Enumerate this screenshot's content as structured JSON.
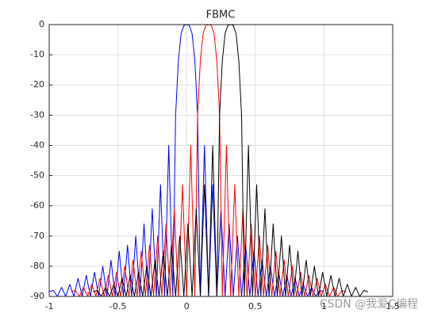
{
  "chart_data": {
    "type": "line",
    "title": "FBMC",
    "grid": true,
    "xlim": [
      -1,
      1.5
    ],
    "xticks": [
      -1,
      -0.5,
      0,
      0.5,
      1,
      1.5
    ],
    "ylim": [
      -90,
      0
    ],
    "yticks": [
      0,
      -10,
      -20,
      -30,
      -40,
      -50,
      -60,
      -70,
      -80,
      -90
    ],
    "series": [
      {
        "color": "#0000ff",
        "x": [
          -1.0,
          -0.97,
          -0.94,
          -0.91,
          -0.88,
          -0.85,
          -0.82,
          -0.79,
          -0.76,
          -0.73,
          -0.7,
          -0.67,
          -0.64,
          -0.61,
          -0.58,
          -0.55,
          -0.52,
          -0.49,
          -0.46,
          -0.43,
          -0.4,
          -0.37,
          -0.34,
          -0.31,
          -0.28,
          -0.25,
          -0.22,
          -0.19,
          -0.16,
          -0.13,
          -0.1,
          -0.08,
          -0.06,
          -0.04,
          -0.02,
          0,
          0.02,
          0.04,
          0.06,
          0.08,
          0.1,
          0.13,
          0.16,
          0.19,
          0.22,
          0.25,
          0.28,
          0.31,
          0.34,
          0.37,
          0.4,
          0.43,
          0.46,
          0.49,
          0.52,
          0.55,
          0.58,
          0.61,
          0.64,
          0.67,
          0.7,
          0.73,
          0.76,
          0.79,
          0.82,
          0.85,
          0.88,
          0.91,
          0.94,
          0.97,
          1.0
        ],
        "values": [
          -88.5,
          -88,
          -90,
          -87,
          -90,
          -86,
          -90,
          -84,
          -90,
          -83,
          -90,
          -82,
          -90,
          -80,
          -90,
          -78,
          -90,
          -75,
          -90,
          -73,
          -90,
          -70,
          -90,
          -66,
          -90,
          -61,
          -90,
          -53,
          -90,
          -40,
          -90,
          -30,
          -12,
          -3,
          -0.3,
          0,
          -0.3,
          -3,
          -12,
          -30,
          -90,
          -40,
          -90,
          -53,
          -90,
          -61,
          -90,
          -66,
          -90,
          -70,
          -90,
          -73,
          -90,
          -75,
          -90,
          -78,
          -90,
          -80,
          -90,
          -82,
          -90,
          -83,
          -90,
          -84,
          -90,
          -86,
          -90,
          -87,
          -90,
          -88,
          -88.5
        ]
      },
      {
        "color": "#ff0000",
        "x": [
          -0.84,
          -0.81,
          -0.78,
          -0.75,
          -0.72,
          -0.69,
          -0.66,
          -0.63,
          -0.6,
          -0.57,
          -0.54,
          -0.51,
          -0.48,
          -0.45,
          -0.42,
          -0.39,
          -0.36,
          -0.33,
          -0.3,
          -0.27,
          -0.24,
          -0.21,
          -0.18,
          -0.15,
          -0.12,
          -0.09,
          -0.06,
          -0.03,
          0,
          0.03,
          0.06,
          0.08,
          0.1,
          0.12,
          0.14,
          0.16,
          0.18,
          0.2,
          0.22,
          0.24,
          0.26,
          0.29,
          0.32,
          0.35,
          0.38,
          0.41,
          0.44,
          0.47,
          0.5,
          0.53,
          0.56,
          0.59,
          0.62,
          0.65,
          0.68,
          0.71,
          0.74,
          0.77,
          0.8,
          0.83,
          0.86,
          0.89,
          0.92,
          0.95,
          0.98,
          1.01,
          1.04,
          1.07,
          1.1,
          1.13,
          1.16
        ],
        "values": [
          -88.5,
          -88,
          -90,
          -87,
          -90,
          -86,
          -90,
          -84,
          -90,
          -83,
          -90,
          -82,
          -90,
          -80,
          -90,
          -78,
          -90,
          -75,
          -90,
          -73,
          -90,
          -70,
          -90,
          -66,
          -90,
          -61,
          -90,
          -53,
          -90,
          -40,
          -90,
          -30,
          -12,
          -3,
          -0.3,
          0,
          -0.3,
          -3,
          -12,
          -30,
          -90,
          -40,
          -90,
          -53,
          -90,
          -61,
          -90,
          -66,
          -90,
          -70,
          -90,
          -73,
          -90,
          -75,
          -90,
          -78,
          -90,
          -80,
          -90,
          -82,
          -90,
          -83,
          -90,
          -84,
          -90,
          -86,
          -90,
          -87,
          -90,
          -88,
          -88.5
        ]
      },
      {
        "color": "#000000",
        "x": [
          -0.68,
          -0.65,
          -0.62,
          -0.59,
          -0.56,
          -0.53,
          -0.5,
          -0.47,
          -0.44,
          -0.41,
          -0.38,
          -0.35,
          -0.32,
          -0.29,
          -0.26,
          -0.23,
          -0.2,
          -0.17,
          -0.14,
          -0.11,
          -0.08,
          -0.05,
          -0.02,
          0.01,
          0.04,
          0.07,
          0.1,
          0.13,
          0.16,
          0.19,
          0.22,
          0.24,
          0.26,
          0.28,
          0.3,
          0.32,
          0.34,
          0.36,
          0.38,
          0.4,
          0.42,
          0.45,
          0.48,
          0.51,
          0.54,
          0.57,
          0.6,
          0.63,
          0.66,
          0.69,
          0.72,
          0.75,
          0.78,
          0.81,
          0.84,
          0.87,
          0.9,
          0.93,
          0.96,
          0.99,
          1.02,
          1.05,
          1.08,
          1.11,
          1.14,
          1.17,
          1.2,
          1.23,
          1.26,
          1.29,
          1.32
        ],
        "values": [
          -88.5,
          -88,
          -90,
          -87,
          -90,
          -86,
          -90,
          -84,
          -90,
          -83,
          -90,
          -82,
          -90,
          -80,
          -90,
          -78,
          -90,
          -75,
          -90,
          -73,
          -90,
          -70,
          -90,
          -66,
          -90,
          -61,
          -90,
          -53,
          -90,
          -40,
          -90,
          -30,
          -12,
          -3,
          -0.3,
          0,
          -0.3,
          -3,
          -12,
          -30,
          -90,
          -40,
          -90,
          -53,
          -90,
          -61,
          -90,
          -66,
          -90,
          -70,
          -90,
          -73,
          -90,
          -75,
          -90,
          -78,
          -90,
          -80,
          -90,
          -82,
          -90,
          -83,
          -90,
          -84,
          -90,
          -86,
          -90,
          -87,
          -90,
          -88,
          -88.5
        ]
      }
    ],
    "watermark": "CSDN @我爱C编程"
  }
}
